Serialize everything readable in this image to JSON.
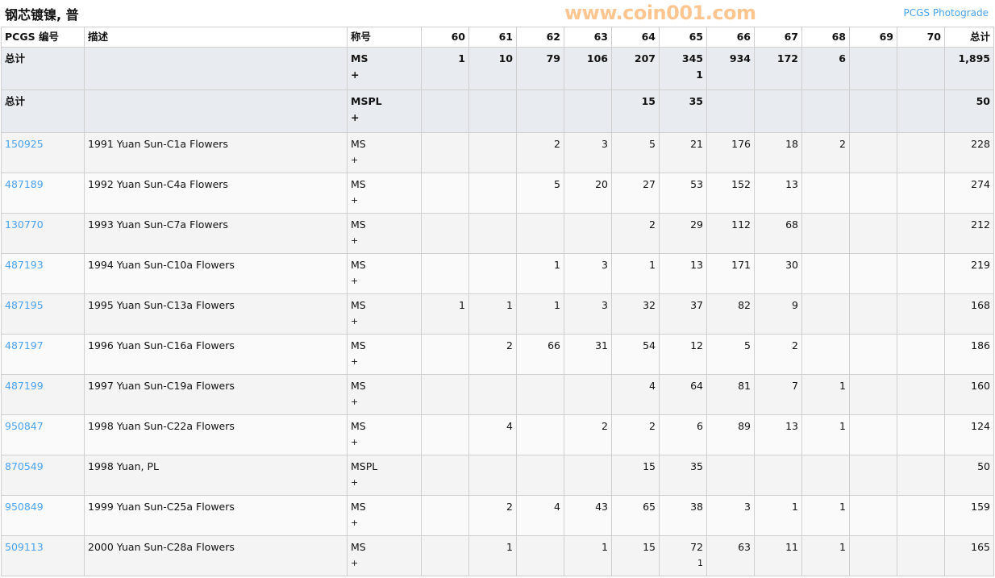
{
  "title": "钢芯镀镍, 普",
  "photograde_link": "PCGS Photograde",
  "watermark": "www.coin001.com",
  "headers": {
    "pcgs": "PCGS 编号",
    "desc": "描述",
    "designation": "称号",
    "grades": [
      "60",
      "61",
      "62",
      "63",
      "64",
      "65",
      "66",
      "67",
      "68",
      "69",
      "70"
    ],
    "total": "总计"
  },
  "totals": [
    {
      "label": "总计",
      "designation": "MS",
      "plus": "+",
      "cells": [
        [
          "1",
          ""
        ],
        [
          "10",
          ""
        ],
        [
          "79",
          ""
        ],
        [
          "106",
          ""
        ],
        [
          "207",
          ""
        ],
        [
          "345",
          "1"
        ],
        [
          "934",
          ""
        ],
        [
          "172",
          ""
        ],
        [
          "6",
          ""
        ],
        [
          "",
          ""
        ],
        [
          "",
          ""
        ]
      ],
      "total": "1,895"
    },
    {
      "label": "总计",
      "designation": "MSPL",
      "plus": "+",
      "cells": [
        [
          "",
          ""
        ],
        [
          "",
          ""
        ],
        [
          "",
          ""
        ],
        [
          "",
          ""
        ],
        [
          "15",
          ""
        ],
        [
          "35",
          ""
        ],
        [
          "",
          ""
        ],
        [
          "",
          ""
        ],
        [
          "",
          ""
        ],
        [
          "",
          ""
        ],
        [
          "",
          ""
        ]
      ],
      "total": "50"
    }
  ],
  "rows": [
    {
      "id": "150925",
      "desc": "1991 Yuan Sun-C1a Flowers",
      "designation": "MS",
      "plus": "+",
      "cells": [
        [
          "",
          ""
        ],
        [
          "",
          ""
        ],
        [
          "2",
          ""
        ],
        [
          "3",
          ""
        ],
        [
          "5",
          ""
        ],
        [
          "21",
          ""
        ],
        [
          "176",
          ""
        ],
        [
          "18",
          ""
        ],
        [
          "2",
          ""
        ],
        [
          "",
          ""
        ],
        [
          "",
          ""
        ]
      ],
      "total": "228"
    },
    {
      "id": "487189",
      "desc": "1992 Yuan Sun-C4a Flowers",
      "designation": "MS",
      "plus": "+",
      "cells": [
        [
          "",
          ""
        ],
        [
          "",
          ""
        ],
        [
          "5",
          ""
        ],
        [
          "20",
          ""
        ],
        [
          "27",
          ""
        ],
        [
          "53",
          ""
        ],
        [
          "152",
          ""
        ],
        [
          "13",
          ""
        ],
        [
          "",
          ""
        ],
        [
          "",
          ""
        ],
        [
          "",
          ""
        ]
      ],
      "total": "274"
    },
    {
      "id": "130770",
      "desc": "1993 Yuan Sun-C7a Flowers",
      "designation": "MS",
      "plus": "+",
      "cells": [
        [
          "",
          ""
        ],
        [
          "",
          ""
        ],
        [
          "",
          ""
        ],
        [
          "",
          ""
        ],
        [
          "2",
          ""
        ],
        [
          "29",
          ""
        ],
        [
          "112",
          ""
        ],
        [
          "68",
          ""
        ],
        [
          "",
          ""
        ],
        [
          "",
          ""
        ],
        [
          "",
          ""
        ]
      ],
      "total": "212"
    },
    {
      "id": "487193",
      "desc": "1994 Yuan Sun-C10a Flowers",
      "designation": "MS",
      "plus": "+",
      "cells": [
        [
          "",
          ""
        ],
        [
          "",
          ""
        ],
        [
          "1",
          ""
        ],
        [
          "3",
          ""
        ],
        [
          "1",
          ""
        ],
        [
          "13",
          ""
        ],
        [
          "171",
          ""
        ],
        [
          "30",
          ""
        ],
        [
          "",
          ""
        ],
        [
          "",
          ""
        ],
        [
          "",
          ""
        ]
      ],
      "total": "219"
    },
    {
      "id": "487195",
      "desc": "1995 Yuan Sun-C13a Flowers",
      "designation": "MS",
      "plus": "+",
      "cells": [
        [
          "1",
          ""
        ],
        [
          "1",
          ""
        ],
        [
          "1",
          ""
        ],
        [
          "3",
          ""
        ],
        [
          "32",
          ""
        ],
        [
          "37",
          ""
        ],
        [
          "82",
          ""
        ],
        [
          "9",
          ""
        ],
        [
          "",
          ""
        ],
        [
          "",
          ""
        ],
        [
          "",
          ""
        ]
      ],
      "total": "168"
    },
    {
      "id": "487197",
      "desc": "1996 Yuan Sun-C16a Flowers",
      "designation": "MS",
      "plus": "+",
      "cells": [
        [
          "",
          ""
        ],
        [
          "2",
          ""
        ],
        [
          "66",
          ""
        ],
        [
          "31",
          ""
        ],
        [
          "54",
          ""
        ],
        [
          "12",
          ""
        ],
        [
          "5",
          ""
        ],
        [
          "2",
          ""
        ],
        [
          "",
          ""
        ],
        [
          "",
          ""
        ],
        [
          "",
          ""
        ]
      ],
      "total": "186"
    },
    {
      "id": "487199",
      "desc": "1997 Yuan Sun-C19a Flowers",
      "designation": "MS",
      "plus": "+",
      "cells": [
        [
          "",
          ""
        ],
        [
          "",
          ""
        ],
        [
          "",
          ""
        ],
        [
          "",
          ""
        ],
        [
          "4",
          ""
        ],
        [
          "64",
          ""
        ],
        [
          "81",
          ""
        ],
        [
          "7",
          ""
        ],
        [
          "1",
          ""
        ],
        [
          "",
          ""
        ],
        [
          "",
          ""
        ]
      ],
      "total": "160"
    },
    {
      "id": "950847",
      "desc": "1998 Yuan Sun-C22a Flowers",
      "designation": "MS",
      "plus": "+",
      "cells": [
        [
          "",
          ""
        ],
        [
          "4",
          ""
        ],
        [
          "",
          ""
        ],
        [
          "2",
          ""
        ],
        [
          "2",
          ""
        ],
        [
          "6",
          ""
        ],
        [
          "89",
          ""
        ],
        [
          "13",
          ""
        ],
        [
          "1",
          ""
        ],
        [
          "",
          ""
        ],
        [
          "",
          ""
        ]
      ],
      "total": "124"
    },
    {
      "id": "870549",
      "desc": "1998 Yuan, PL",
      "designation": "MSPL",
      "plus": "+",
      "cells": [
        [
          "",
          ""
        ],
        [
          "",
          ""
        ],
        [
          "",
          ""
        ],
        [
          "",
          ""
        ],
        [
          "15",
          ""
        ],
        [
          "35",
          ""
        ],
        [
          "",
          ""
        ],
        [
          "",
          ""
        ],
        [
          "",
          ""
        ],
        [
          "",
          ""
        ],
        [
          "",
          ""
        ]
      ],
      "total": "50"
    },
    {
      "id": "950849",
      "desc": "1999 Yuan Sun-C25a Flowers",
      "designation": "MS",
      "plus": "+",
      "cells": [
        [
          "",
          ""
        ],
        [
          "2",
          ""
        ],
        [
          "4",
          ""
        ],
        [
          "43",
          ""
        ],
        [
          "65",
          ""
        ],
        [
          "38",
          ""
        ],
        [
          "3",
          ""
        ],
        [
          "1",
          ""
        ],
        [
          "1",
          ""
        ],
        [
          "",
          ""
        ],
        [
          "",
          ""
        ]
      ],
      "total": "159"
    },
    {
      "id": "509113",
      "desc": "2000 Yuan Sun-C28a Flowers",
      "designation": "MS",
      "plus": "+",
      "cells": [
        [
          "",
          ""
        ],
        [
          "1",
          ""
        ],
        [
          "",
          ""
        ],
        [
          "1",
          ""
        ],
        [
          "15",
          ""
        ],
        [
          "72",
          "1"
        ],
        [
          "63",
          ""
        ],
        [
          "11",
          ""
        ],
        [
          "1",
          ""
        ],
        [
          "",
          ""
        ],
        [
          "",
          ""
        ]
      ],
      "total": "165"
    }
  ]
}
